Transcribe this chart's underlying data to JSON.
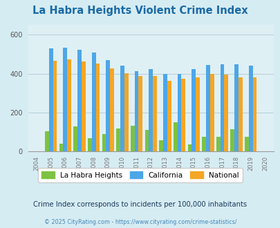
{
  "title": "La Habra Heights Violent Crime Index",
  "years": [
    "2004",
    "2005",
    "2006",
    "2007",
    "2008",
    "2009",
    "2010",
    "2011",
    "2012",
    "2013",
    "2014",
    "2015",
    "2016",
    "2017",
    "2018",
    "2019",
    "2020"
  ],
  "la_habra": [
    0,
    105,
    40,
    130,
    68,
    90,
    120,
    133,
    112,
    60,
    150,
    38,
    75,
    75,
    115,
    75,
    0
  ],
  "california": [
    0,
    530,
    535,
    525,
    508,
    470,
    440,
    413,
    425,
    400,
    400,
    425,
    445,
    448,
    448,
    440,
    0
  ],
  "national": [
    0,
    468,
    472,
    464,
    454,
    428,
    404,
    388,
    390,
    365,
    375,
    383,
    400,
    395,
    383,
    380,
    0
  ],
  "color_lahabra": "#7dc242",
  "color_california": "#4da6e8",
  "color_national": "#f5a623",
  "color_title": "#1a6aa5",
  "bg_color": "#d6ecf3",
  "plot_bg": "#dff0f5",
  "subtitle": "Crime Index corresponds to incidents per 100,000 inhabitants",
  "footer": "© 2025 CityRating.com - https://www.cityrating.com/crime-statistics/",
  "legend_labels": [
    "La Habra Heights",
    "California",
    "National"
  ],
  "bar_width": 0.28,
  "subtitle_color": "#1a3a5c",
  "footer_color": "#4488bb"
}
